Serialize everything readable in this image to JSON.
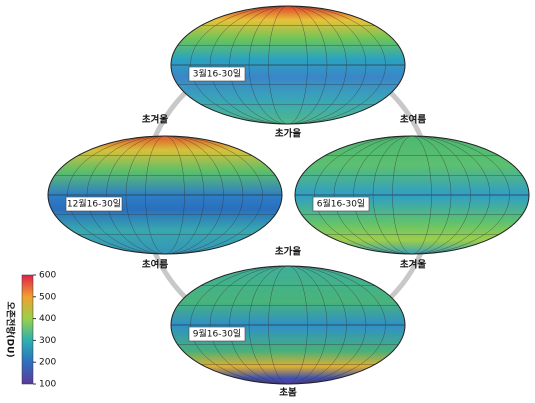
{
  "maps": [
    {
      "label": "3월16-30일"
    },
    {
      "label": "12월16-30일"
    },
    {
      "label": "6월16-30일"
    },
    {
      "label": "9월16-30일"
    }
  ],
  "seasons": [
    "초겨울",
    "초가을",
    "초여름",
    "초가을",
    "초여름",
    "초겨울",
    "초봄"
  ],
  "colorbar": {
    "title": "오존전량(DU)",
    "lim": [
      100,
      600
    ],
    "ticks": [
      100,
      200,
      300,
      400,
      500,
      600
    ]
  }
}
